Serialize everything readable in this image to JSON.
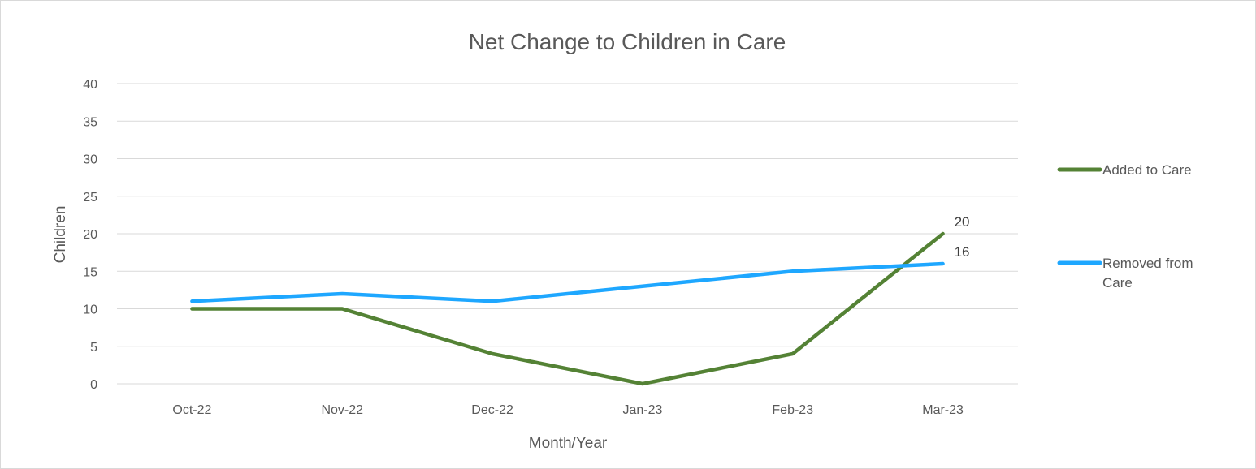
{
  "chart_data": {
    "type": "line",
    "title": "Net Change to Children in Care",
    "xlabel": "Month/Year",
    "ylabel": "Children",
    "categories": [
      "Oct-22",
      "Nov-22",
      "Dec-22",
      "Jan-23",
      "Feb-23",
      "Mar-23"
    ],
    "ylim": [
      0,
      40
    ],
    "yticks": [
      0,
      5,
      10,
      15,
      20,
      25,
      30,
      35,
      40
    ],
    "grid": true,
    "legend_position": "right",
    "series": [
      {
        "name": "Added to Care",
        "legend_lines": [
          "Added to Care"
        ],
        "color": "#548235",
        "values": [
          10,
          10,
          4,
          0,
          4,
          20
        ],
        "last_label": "20"
      },
      {
        "name": "Removed from Care",
        "legend_lines": [
          "Removed from",
          "Care"
        ],
        "color": "#1ea7ff",
        "values": [
          11,
          12,
          11,
          13,
          15,
          16
        ],
        "last_label": "16"
      }
    ]
  }
}
